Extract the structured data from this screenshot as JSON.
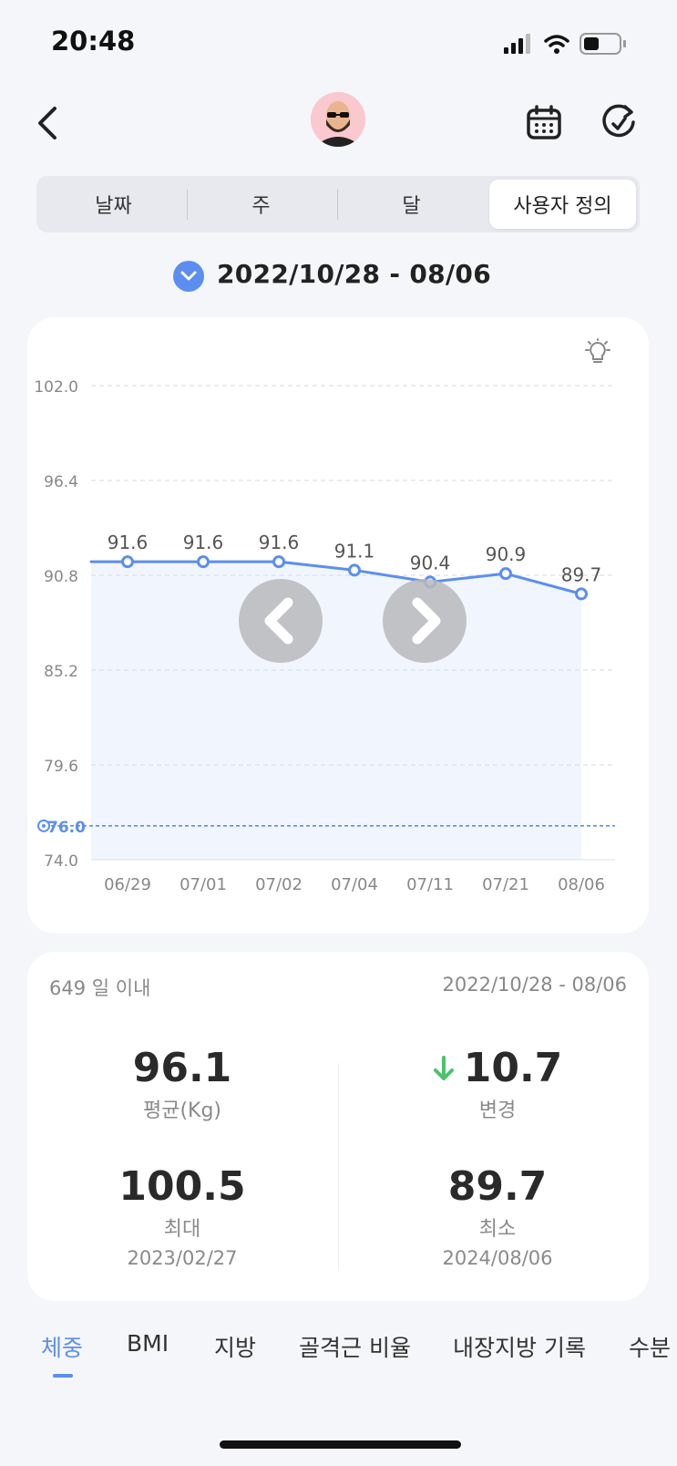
{
  "status": {
    "time": "20:48"
  },
  "header": {
    "icons": [
      "back-chevron-icon",
      "avatar",
      "calendar-icon",
      "refresh-icon"
    ]
  },
  "segments": {
    "items": [
      "날짜",
      "주",
      "달",
      "사용자 정의"
    ],
    "selected": "사용자 정의"
  },
  "range": {
    "label": "2022/10/28 - 08/06"
  },
  "chart_data": {
    "type": "area",
    "categories": [
      "06/29",
      "07/01",
      "07/02",
      "07/04",
      "07/11",
      "07/21",
      "08/06"
    ],
    "values": [
      91.6,
      91.6,
      91.6,
      91.1,
      90.4,
      90.9,
      89.7
    ],
    "value_labels": [
      "91.6",
      "91.6",
      "91.6",
      "91.1",
      "90.4",
      "90.9",
      "89.7"
    ],
    "y_ticks": [
      "102.0",
      "96.4",
      "90.8",
      "85.2",
      "79.6",
      "74.0"
    ],
    "y_tick_values": [
      102.0,
      96.4,
      90.8,
      85.2,
      79.6,
      74.0
    ],
    "ylim": [
      74.0,
      102.0
    ],
    "target": {
      "value": 76.0,
      "label": "76.0"
    },
    "grid": true,
    "colors": {
      "line": "#5b8ef0",
      "fill": "#f1f5fe",
      "target": "#5b8ef0",
      "grid": "#dcdfe6"
    }
  },
  "stats": {
    "days": "649 일 이내",
    "range": "2022/10/28 - 08/06",
    "average": {
      "value": "96.1",
      "label": "평균(Kg)"
    },
    "change": {
      "value": "10.7",
      "label": "변경",
      "direction": "down"
    },
    "max": {
      "value": "100.5",
      "label": "최대",
      "date": "2023/02/27"
    },
    "min": {
      "value": "89.7",
      "label": "최소",
      "date": "2024/08/06"
    }
  },
  "metric_tabs": {
    "items": [
      "체중",
      "BMI",
      "지방",
      "골격근 비율",
      "내장지방 기록",
      "수분"
    ],
    "selected": "체중"
  },
  "colors": {
    "accent": "#5b8ef0",
    "down_arrow": "#4cc26a",
    "background": "#f5f6f9"
  }
}
